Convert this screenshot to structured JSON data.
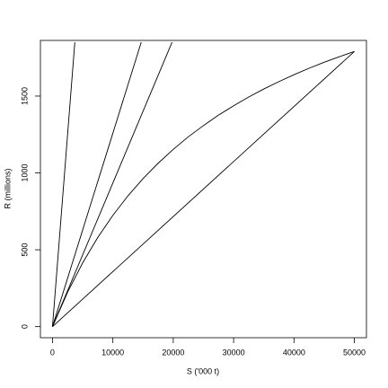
{
  "chart_data": {
    "type": "line",
    "x_label": "S ('000 t)",
    "y_label": "R (millions)",
    "xlim": [
      -2000,
      52000
    ],
    "ylim": [
      -72,
      1862
    ],
    "xticks": [
      0,
      10000,
      20000,
      30000,
      40000,
      50000
    ],
    "yticks": [
      0,
      500,
      1000,
      1500
    ],
    "series": [
      {
        "color": "#000000",
        "x": [
          0,
          2500,
          5000,
          7500,
          10000,
          12500,
          15000,
          17500,
          20000,
          22500,
          25000,
          27500,
          30000,
          32500,
          35000,
          37500,
          40000,
          42500,
          45000,
          47500,
          50000
        ],
        "values": [
          0,
          224,
          415,
          580,
          724,
          851,
          963,
          1063,
          1153,
          1235,
          1308,
          1376,
          1437,
          1494,
          1546,
          1594,
          1639,
          1681,
          1720,
          1756,
          1790
        ]
      },
      {
        "color": "#000000",
        "x": [
          0,
          3700
        ],
        "values": [
          0,
          1850
        ]
      },
      {
        "color": "#000000",
        "x": [
          0,
          14700
        ],
        "values": [
          0,
          1850
        ]
      },
      {
        "color": "#000000",
        "x": [
          0,
          19800
        ],
        "values": [
          0,
          1850
        ]
      },
      {
        "color": "#000000",
        "x": [
          0,
          50000
        ],
        "values": [
          0,
          1790
        ]
      }
    ]
  }
}
